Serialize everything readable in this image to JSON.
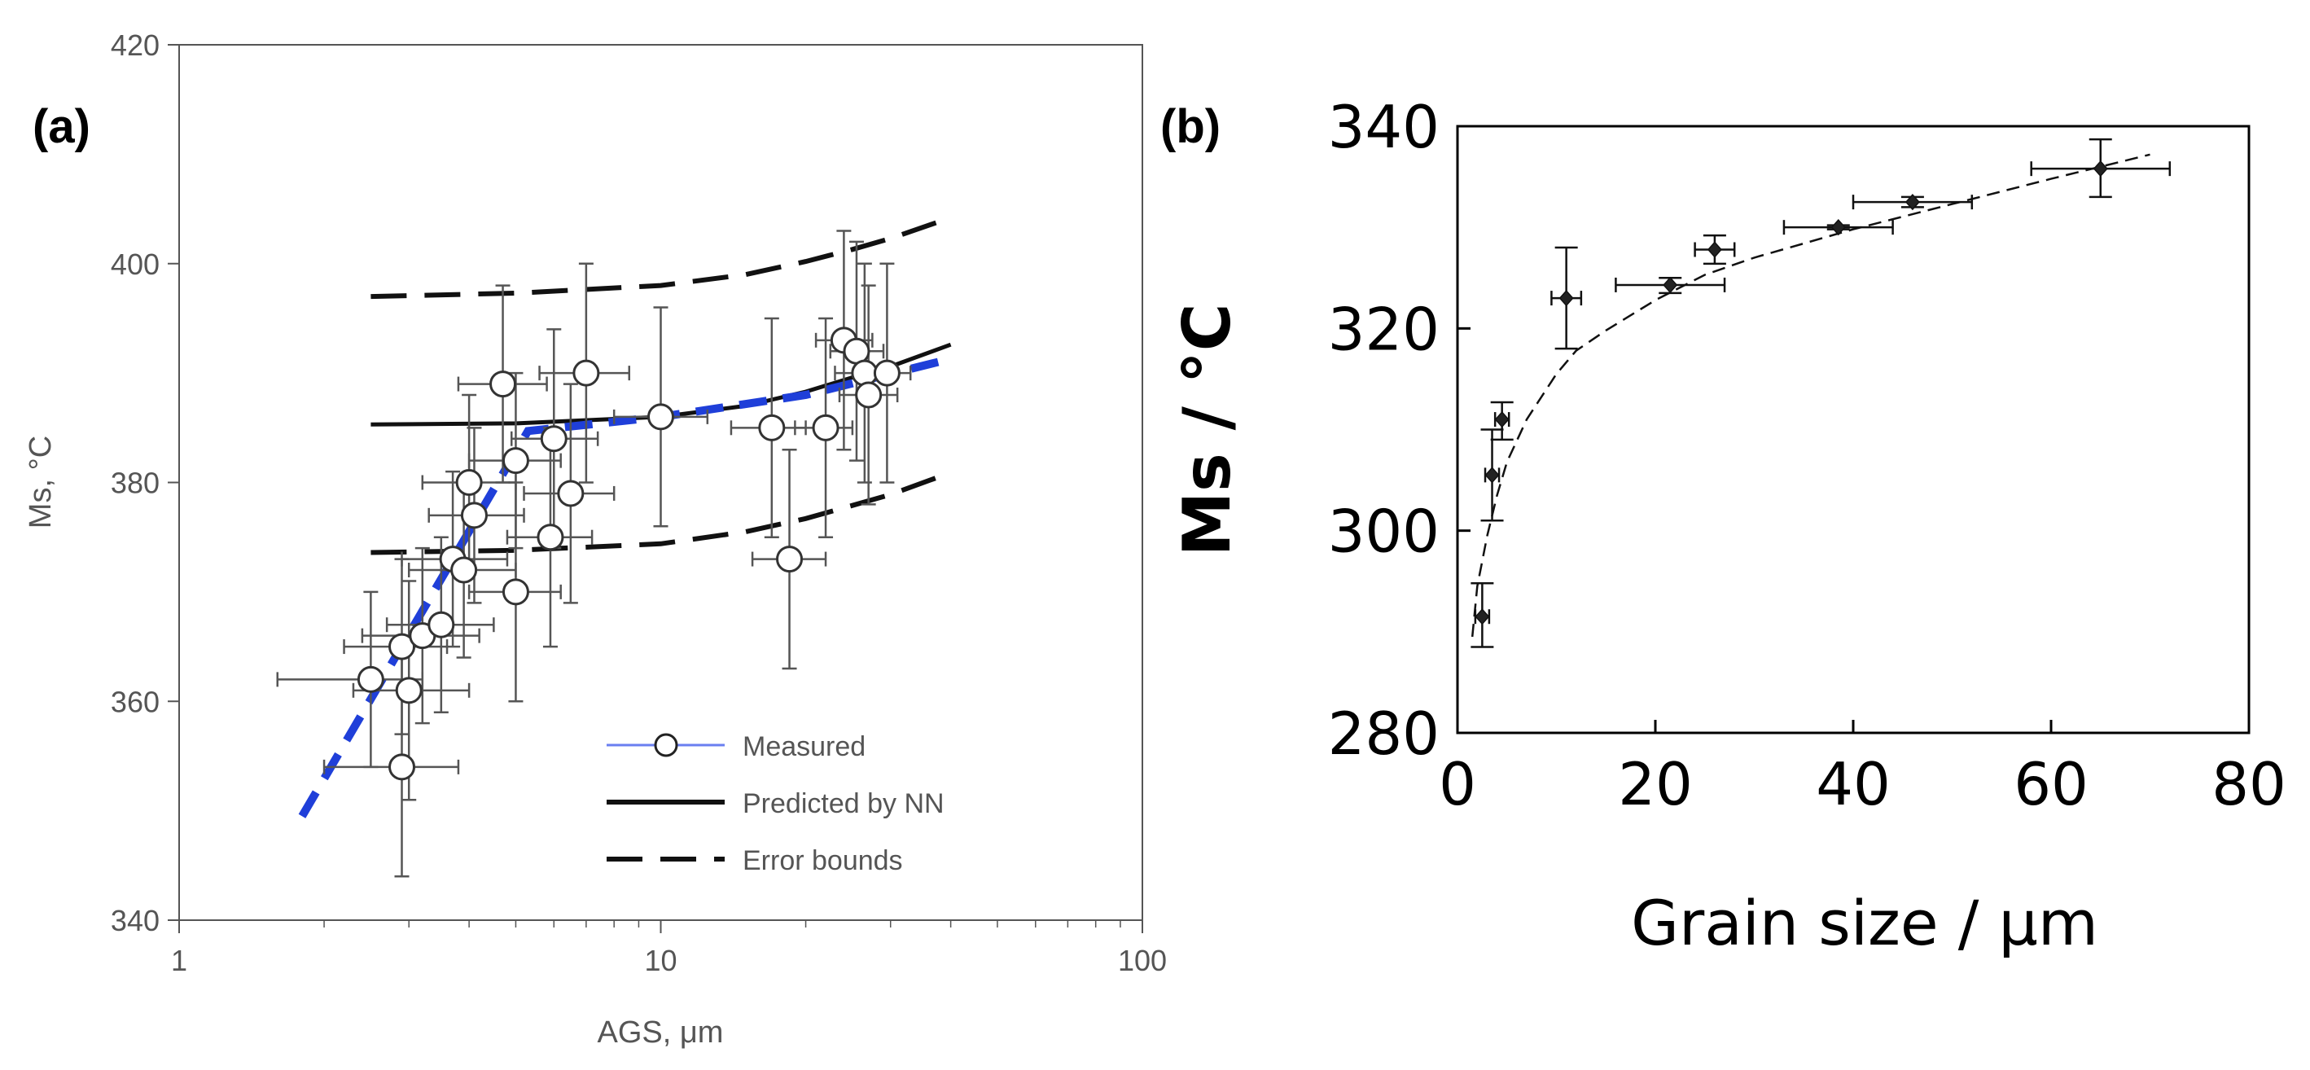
{
  "chart_data": [
    {
      "type": "scatter",
      "panel_label": "(a)",
      "xlabel": "AGS, μm",
      "ylabel": "Ms, °C",
      "xscale": "log",
      "xlim": [
        1,
        100
      ],
      "ylim": [
        340,
        420
      ],
      "xticks": [
        "1",
        "10",
        "100"
      ],
      "yticks": [
        "340",
        "360",
        "380",
        "400",
        "420"
      ],
      "legend": {
        "position": "bottom-right",
        "entries": [
          "Measured",
          "Predicted by NN",
          "Error bounds"
        ]
      },
      "series": [
        {
          "name": "Measured",
          "points": [
            {
              "x": 2.5,
              "y": 362,
              "xerr": [
                1.6,
                3.2
              ],
              "yerr": [
                354,
                370
              ]
            },
            {
              "x": 2.9,
              "y": 354,
              "xerr": [
                2.0,
                3.8
              ],
              "yerr": [
                344,
                364
              ]
            },
            {
              "x": 2.9,
              "y": 365,
              "xerr": [
                2.2,
                3.6
              ],
              "yerr": [
                357,
                373
              ]
            },
            {
              "x": 3.0,
              "y": 361,
              "xerr": [
                2.3,
                4.0
              ],
              "yerr": [
                351,
                371
              ]
            },
            {
              "x": 3.2,
              "y": 366,
              "xerr": [
                2.4,
                4.2
              ],
              "yerr": [
                358,
                374
              ]
            },
            {
              "x": 3.5,
              "y": 367,
              "xerr": [
                2.7,
                4.5
              ],
              "yerr": [
                359,
                375
              ]
            },
            {
              "x": 3.7,
              "y": 373,
              "xerr": [
                2.9,
                4.8
              ],
              "yerr": [
                365,
                381
              ]
            },
            {
              "x": 3.9,
              "y": 372,
              "xerr": [
                3.0,
                5.0
              ],
              "yerr": [
                364,
                380
              ]
            },
            {
              "x": 4.0,
              "y": 380,
              "xerr": [
                3.2,
                5.0
              ],
              "yerr": [
                372,
                388
              ]
            },
            {
              "x": 4.1,
              "y": 377,
              "xerr": [
                3.3,
                5.2
              ],
              "yerr": [
                369,
                385
              ]
            },
            {
              "x": 4.7,
              "y": 389,
              "xerr": [
                3.8,
                5.8
              ],
              "yerr": [
                380,
                398
              ]
            },
            {
              "x": 5.0,
              "y": 370,
              "xerr": [
                4.0,
                6.2
              ],
              "yerr": [
                360,
                380
              ]
            },
            {
              "x": 5.0,
              "y": 382,
              "xerr": [
                4.0,
                6.2
              ],
              "yerr": [
                374,
                390
              ]
            },
            {
              "x": 5.9,
              "y": 375,
              "xerr": [
                4.8,
                7.2
              ],
              "yerr": [
                365,
                385
              ]
            },
            {
              "x": 6.0,
              "y": 384,
              "xerr": [
                4.9,
                7.4
              ],
              "yerr": [
                374,
                394
              ]
            },
            {
              "x": 6.5,
              "y": 379,
              "xerr": [
                5.2,
                8.0
              ],
              "yerr": [
                369,
                389
              ]
            },
            {
              "x": 7.0,
              "y": 390,
              "xerr": [
                5.6,
                8.6
              ],
              "yerr": [
                380,
                400
              ]
            },
            {
              "x": 10.0,
              "y": 386,
              "xerr": [
                8.0,
                12.5
              ],
              "yerr": [
                376,
                396
              ]
            },
            {
              "x": 17.0,
              "y": 385,
              "xerr": [
                14.0,
                20.0
              ],
              "yerr": [
                375,
                395
              ]
            },
            {
              "x": 18.5,
              "y": 373,
              "xerr": [
                15.5,
                22.0
              ],
              "yerr": [
                363,
                383
              ]
            },
            {
              "x": 22.0,
              "y": 385,
              "xerr": [
                19.0,
                25.0
              ],
              "yerr": [
                375,
                395
              ]
            },
            {
              "x": 24.0,
              "y": 393,
              "xerr": [
                21.0,
                27.5
              ],
              "yerr": [
                383,
                403
              ]
            },
            {
              "x": 25.5,
              "y": 392,
              "xerr": [
                22.5,
                29.0
              ],
              "yerr": [
                382,
                402
              ]
            },
            {
              "x": 26.5,
              "y": 390,
              "xerr": [
                23.0,
                30.5
              ],
              "yerr": [
                380,
                400
              ]
            },
            {
              "x": 27.0,
              "y": 388,
              "xerr": [
                23.5,
                31.0
              ],
              "yerr": [
                378,
                398
              ]
            },
            {
              "x": 29.5,
              "y": 390,
              "xerr": [
                26.0,
                33.0
              ],
              "yerr": [
                380,
                400
              ]
            }
          ]
        },
        {
          "name": "Predicted by NN",
          "line": [
            [
              2.5,
              385.3
            ],
            [
              5,
              385.4
            ],
            [
              10,
              386.0
            ],
            [
              15,
              387.0
            ],
            [
              20,
              388.3
            ],
            [
              25,
              389.6
            ],
            [
              30,
              390.6
            ],
            [
              40,
              392.6
            ]
          ]
        },
        {
          "name": "Error bounds",
          "upper": [
            [
              2.5,
              397.0
            ],
            [
              5,
              397.3
            ],
            [
              10,
              398.0
            ],
            [
              15,
              399.0
            ],
            [
              20,
              400.2
            ],
            [
              25,
              401.3
            ],
            [
              30,
              402.3
            ],
            [
              40,
              404.2
            ]
          ],
          "lower": [
            [
              2.5,
              373.6
            ],
            [
              5,
              373.8
            ],
            [
              10,
              374.4
            ],
            [
              15,
              375.5
            ],
            [
              20,
              376.7
            ],
            [
              25,
              377.9
            ],
            [
              30,
              378.9
            ],
            [
              40,
              380.9
            ]
          ]
        },
        {
          "name": "Trend (blue dashed)",
          "color": "#1f3fd9",
          "line": [
            [
              1.8,
              349.5
            ],
            [
              5.3,
              384.7
            ],
            [
              10,
              386.0
            ],
            [
              20,
              388.0
            ],
            [
              40,
              391.3
            ]
          ]
        }
      ]
    },
    {
      "type": "scatter",
      "panel_label": "(b)",
      "xlabel": "Grain size / μm",
      "ylabel": "Ms / °C",
      "xlim": [
        0,
        80
      ],
      "ylim": [
        280,
        340
      ],
      "xticks": [
        "0",
        "20",
        "40",
        "60",
        "80"
      ],
      "yticks": [
        "280",
        "300",
        "320",
        "340"
      ],
      "series": [
        {
          "name": "Measured",
          "points": [
            {
              "x": 2.5,
              "y": 291.5,
              "xerr": [
                1.8,
                3.2
              ],
              "yerr": [
                288.5,
                294.8
              ]
            },
            {
              "x": 3.5,
              "y": 305.5,
              "xerr": [
                2.8,
                4.2
              ],
              "yerr": [
                301.0,
                310.0
              ]
            },
            {
              "x": 4.5,
              "y": 311.0,
              "xerr": [
                3.8,
                5.2
              ],
              "yerr": [
                309.0,
                312.7
              ]
            },
            {
              "x": 11.0,
              "y": 323.0,
              "xerr": [
                9.5,
                12.5
              ],
              "yerr": [
                318.0,
                328.0
              ]
            },
            {
              "x": 21.5,
              "y": 324.3,
              "xerr": [
                16.0,
                27.0
              ],
              "yerr": [
                323.5,
                325.0
              ]
            },
            {
              "x": 26.0,
              "y": 327.8,
              "xerr": [
                24.0,
                28.0
              ],
              "yerr": [
                326.4,
                329.2
              ]
            },
            {
              "x": 38.5,
              "y": 330.0,
              "xerr": [
                33.0,
                44.0
              ],
              "yerr": [
                329.8,
                330.2
              ]
            },
            {
              "x": 46.0,
              "y": 332.5,
              "xerr": [
                40.0,
                52.0
              ],
              "yerr": [
                332.0,
                333.0
              ]
            },
            {
              "x": 65.0,
              "y": 335.8,
              "xerr": [
                58.0,
                72.0
              ],
              "yerr": [
                333.0,
                338.7
              ]
            }
          ]
        },
        {
          "name": "Fit",
          "line": [
            [
              1.5,
              289.5
            ],
            [
              2.0,
              294.5
            ],
            [
              3.0,
              299.5
            ],
            [
              4.0,
              303.5
            ],
            [
              5.0,
              306.8
            ],
            [
              7.0,
              311.0
            ],
            [
              10.0,
              315.5
            ],
            [
              12.0,
              317.8
            ],
            [
              15.0,
              319.8
            ],
            [
              20.0,
              322.8
            ],
            [
              25.0,
              325.3
            ],
            [
              30.0,
              327.0
            ],
            [
              40.0,
              329.8
            ],
            [
              50.0,
              332.3
            ],
            [
              60.0,
              334.8
            ],
            [
              70.0,
              337.2
            ]
          ]
        }
      ]
    }
  ]
}
